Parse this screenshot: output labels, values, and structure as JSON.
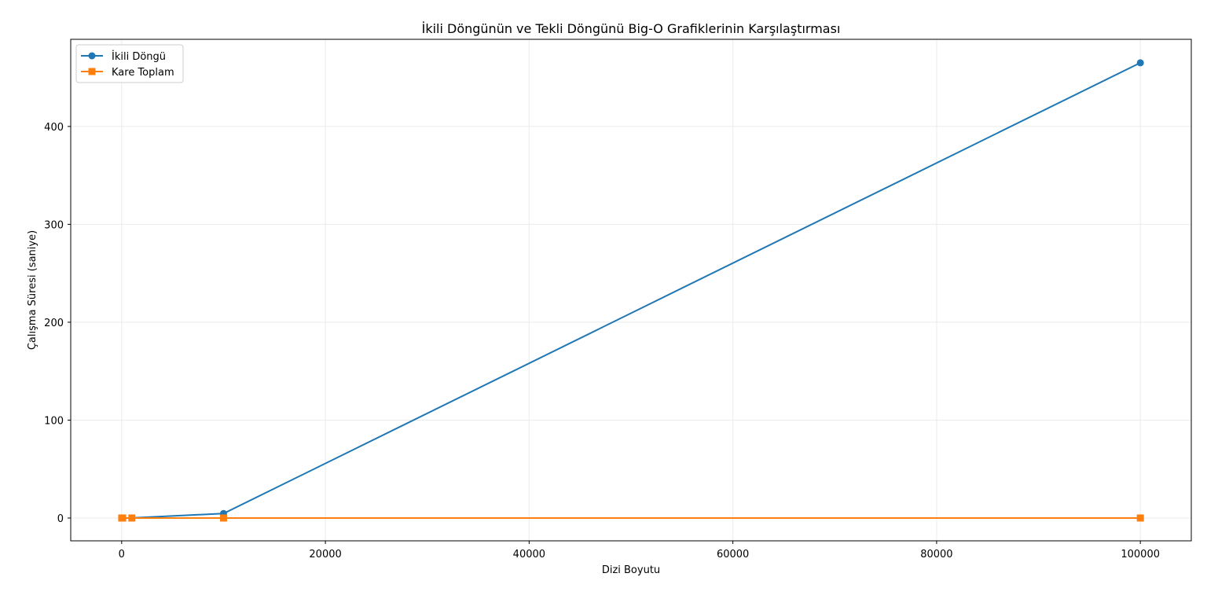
{
  "chart_data": {
    "type": "line",
    "title": "İkili Döngünün ve Tekli Döngünü Big-O Grafiklerinin Karşılaştırması",
    "xlabel": "Dizi Boyutu",
    "ylabel": "Çalışma Süresi (saniye)",
    "xlim": [
      -5000,
      105000
    ],
    "ylim": [
      -23.3,
      489
    ],
    "x_ticks": [
      0,
      20000,
      40000,
      60000,
      80000,
      100000
    ],
    "x_tick_labels": [
      "0",
      "20000",
      "40000",
      "60000",
      "80000",
      "100000"
    ],
    "y_ticks": [
      0,
      100,
      200,
      300,
      400
    ],
    "y_tick_labels": [
      "0",
      "100",
      "200",
      "300",
      "400"
    ],
    "grid": true,
    "legend_position": "top-left",
    "x": [
      10,
      100,
      1000,
      10000,
      100000
    ],
    "series": [
      {
        "name": "İkili Döngü",
        "marker": "circle",
        "color": "#1f77b4",
        "values": [
          0.0001,
          0.0046,
          0.046,
          4.6,
          465
        ]
      },
      {
        "name": "Kare Toplam",
        "marker": "square",
        "color": "#ff7f0e",
        "values": [
          5e-07,
          3e-06,
          3e-05,
          0.0003,
          0.003
        ]
      }
    ]
  }
}
